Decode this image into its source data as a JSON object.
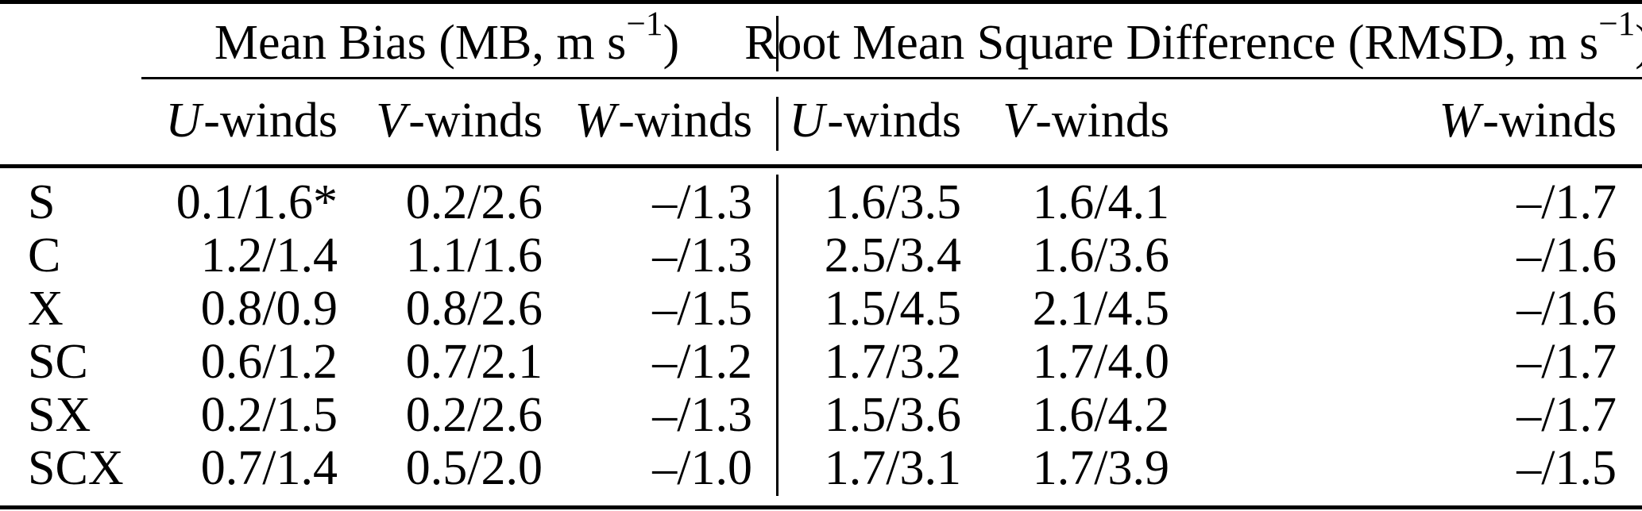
{
  "table": {
    "group_headers": {
      "mb": {
        "pre": "Mean Bias (MB, m s",
        "sup": "−1",
        "post": ")"
      },
      "rmsd": {
        "pre": "Root Mean Square Difference (RMSD, m s",
        "sup": "−1",
        "post": ")"
      }
    },
    "sub_headers": {
      "mb": [
        {
          "letter": "U",
          "suffix": "-winds"
        },
        {
          "letter": "V",
          "suffix": "-winds"
        },
        {
          "letter": "W",
          "suffix": "-winds"
        }
      ],
      "rmsd": [
        {
          "letter": "U",
          "suffix": "-winds"
        },
        {
          "letter": "V",
          "suffix": "-winds"
        },
        {
          "letter": "W",
          "suffix": "-winds"
        }
      ]
    },
    "rows": [
      {
        "label": "S",
        "mb_u": "0.1/1.6*",
        "mb_v": "0.2/2.6",
        "mb_w": "–/1.3",
        "rmsd_u": "1.6/3.5",
        "rmsd_v": "1.6/4.1",
        "rmsd_w": "–/1.7"
      },
      {
        "label": "C",
        "mb_u": "1.2/1.4",
        "mb_v": "1.1/1.6",
        "mb_w": "–/1.3",
        "rmsd_u": "2.5/3.4",
        "rmsd_v": "1.6/3.6",
        "rmsd_w": "–/1.6"
      },
      {
        "label": "X",
        "mb_u": "0.8/0.9",
        "mb_v": "0.8/2.6",
        "mb_w": "–/1.5",
        "rmsd_u": "1.5/4.5",
        "rmsd_v": "2.1/4.5",
        "rmsd_w": "–/1.6"
      },
      {
        "label": "SC",
        "mb_u": "0.6/1.2",
        "mb_v": "0.7/2.1",
        "mb_w": "–/1.2",
        "rmsd_u": "1.7/3.2",
        "rmsd_v": "1.7/4.0",
        "rmsd_w": "–/1.7"
      },
      {
        "label": "SX",
        "mb_u": "0.2/1.5",
        "mb_v": "0.2/2.6",
        "mb_w": "–/1.3",
        "rmsd_u": "1.5/3.6",
        "rmsd_v": "1.6/4.2",
        "rmsd_w": "–/1.7"
      },
      {
        "label": "SCX",
        "mb_u": "0.7/1.4",
        "mb_v": "0.5/2.0",
        "mb_w": "–/1.0",
        "rmsd_u": "1.7/3.1",
        "rmsd_v": "1.7/3.9",
        "rmsd_w": "–/1.5"
      }
    ],
    "colors": {
      "text": "#000000",
      "rule": "#000000",
      "background": "#ffffff"
    }
  }
}
